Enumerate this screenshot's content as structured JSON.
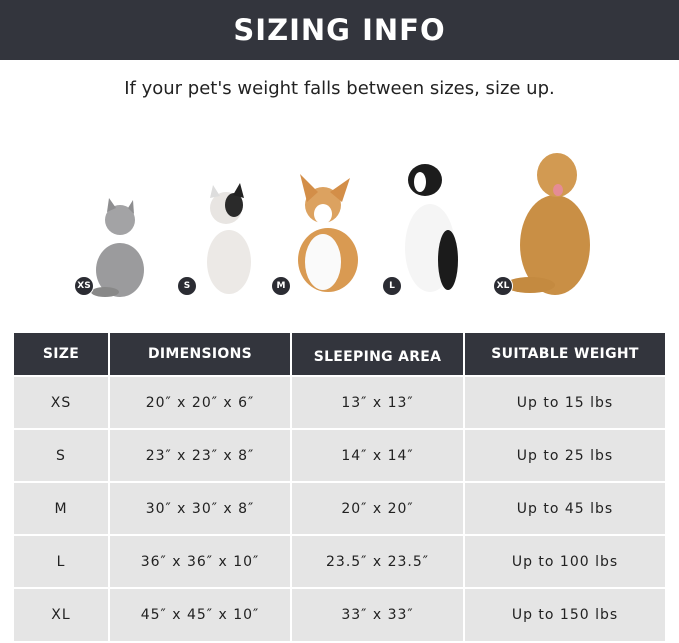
{
  "title": "SIZING INFO",
  "subtitle": "If your pet's weight falls between sizes, size up.",
  "colors": {
    "header_bg": "#33353d",
    "row_bg": "#e5e5e5"
  },
  "pets": [
    {
      "badge": "XS",
      "animal": "gray cat"
    },
    {
      "badge": "S",
      "animal": "french bulldog"
    },
    {
      "badge": "M",
      "animal": "corgi"
    },
    {
      "badge": "L",
      "animal": "border collie"
    },
    {
      "badge": "XL",
      "animal": "golden retriever"
    }
  ],
  "table": {
    "headers": [
      "SIZE",
      "DIMENSIONS",
      "SLEEPING AREA",
      "SUITABLE WEIGHT"
    ],
    "rows": [
      [
        "XS",
        "20″ x 20″ x 6″",
        "13″ x 13″",
        "Up to 15 lbs"
      ],
      [
        "S",
        "23″ x 23″ x 8″",
        "14″ x 14″",
        "Up to 25 lbs"
      ],
      [
        "M",
        "30″ x 30″ x 8″",
        "20″ x 20″",
        "Up to 45 lbs"
      ],
      [
        "L",
        "36″ x 36″ x 10″",
        "23.5″ x 23.5″",
        "Up to 100 lbs"
      ],
      [
        "XL",
        "45″ x 45″ x 10″",
        "33″ x 33″",
        "Up to 150 lbs"
      ]
    ]
  }
}
